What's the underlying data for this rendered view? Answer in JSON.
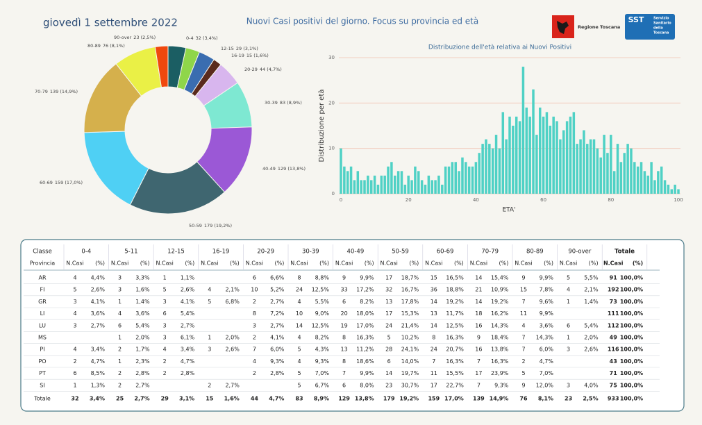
{
  "header": {
    "date": "giovedì 1 settembre 2022",
    "title": "Nuovi Casi positivi del giorno. Focus su provincia ed età",
    "logo_regione": "Regione Toscana",
    "logo_sst": {
      "mark": "SST",
      "lines": [
        "Servizio",
        "Sanitario",
        "della",
        "Toscana"
      ]
    }
  },
  "chart_data": [
    {
      "type": "donut",
      "categories": [
        "0-4",
        null,
        "12-15",
        "16-19",
        "20-29",
        "30-39",
        "40-49",
        "50-59",
        "60-69",
        "70-79",
        "80-89",
        "90-over"
      ],
      "values": [
        32,
        25,
        29,
        15,
        44,
        83,
        129,
        179,
        159,
        139,
        76,
        23
      ],
      "value_labels": [
        "32 (3,4%)",
        null,
        "29 (3,1%)",
        "15 (1,6%)",
        "44 (4,7%)",
        "83 (8,9%)",
        "129 (13,8%)",
        "179 (19,2%)",
        "159 (17,0%)",
        "139 (14,9%)",
        "76 (8,1%)",
        "23 (2,5%)"
      ],
      "colors": [
        "#1b5e63",
        "#8fd64a",
        "#3a6db0",
        "#5a2a1c",
        "#d8b6ee",
        "#7ee8d2",
        "#9b58d6",
        "#3f6670",
        "#4fd0f4",
        "#d5b04c",
        "#eaf046",
        "#f0480e"
      ]
    },
    {
      "type": "bar",
      "title": "Distribuzione dell'età relativa ai Nuovi Positivi",
      "x_label": "ETA'",
      "y_label": "Distribuzione per età",
      "x": [
        0,
        1,
        2,
        3,
        4,
        5,
        6,
        7,
        8,
        9,
        10,
        11,
        12,
        13,
        14,
        15,
        16,
        17,
        18,
        19,
        20,
        21,
        22,
        23,
        24,
        25,
        26,
        27,
        28,
        29,
        30,
        31,
        32,
        33,
        34,
        35,
        36,
        37,
        38,
        39,
        40,
        41,
        42,
        43,
        44,
        45,
        46,
        47,
        48,
        49,
        50,
        51,
        52,
        53,
        54,
        55,
        56,
        57,
        58,
        59,
        60,
        61,
        62,
        63,
        64,
        65,
        66,
        67,
        68,
        69,
        70,
        71,
        72,
        73,
        74,
        75,
        76,
        77,
        78,
        79,
        80,
        81,
        82,
        83,
        84,
        85,
        86,
        87,
        88,
        89,
        90,
        91,
        92,
        93,
        94,
        95,
        96,
        97,
        98,
        99,
        100
      ],
      "values": [
        10,
        6,
        5,
        6,
        3,
        5,
        3,
        3,
        4,
        3,
        4,
        2,
        4,
        4,
        6,
        7,
        4,
        5,
        5,
        2,
        4,
        3,
        6,
        5,
        3,
        2,
        4,
        3,
        3,
        4,
        2,
        6,
        6,
        7,
        7,
        5,
        8,
        7,
        6,
        6,
        7,
        9,
        11,
        12,
        11,
        10,
        13,
        10,
        18,
        12,
        17,
        15,
        17,
        16,
        28,
        19,
        17,
        23,
        13,
        19,
        17,
        18,
        15,
        17,
        16,
        12,
        14,
        16,
        17,
        18,
        11,
        12,
        14,
        11,
        12,
        12,
        10,
        8,
        13,
        9,
        13,
        5,
        11,
        7,
        9,
        11,
        10,
        7,
        6,
        7,
        5,
        4,
        7,
        3,
        5,
        6,
        3,
        2,
        1,
        2,
        1
      ],
      "color": "#4fd1c5",
      "xlim": [
        0,
        100
      ],
      "xticks": [
        0,
        20,
        40,
        60,
        80,
        100
      ],
      "ylim": [
        0,
        30
      ],
      "yticks": [
        0,
        10,
        20,
        30
      ],
      "grid": true
    }
  ],
  "table": {
    "header": [
      "Classe",
      "0-4",
      "5-11",
      "12-15",
      "16-19",
      "20-29",
      "30-39",
      "40-49",
      "50-59",
      "60-69",
      "70-79",
      "80-89",
      "90-over",
      "Totale"
    ],
    "subheader": [
      "Provincia",
      "N.Casi",
      "(%)",
      "N.Casi",
      "(%)",
      "N.Casi",
      "(%)",
      "N.Casi",
      "(%)",
      "N.Casi",
      "(%)",
      "N.Casi",
      "(%)",
      "N.Casi",
      "(%)",
      "N.Casi",
      "(%)",
      "N.Casi",
      "(%)",
      "N.Casi",
      "(%)",
      "N.Casi",
      "(%)",
      "N.Casi",
      "(%)",
      "N.Casi",
      "(%)"
    ],
    "rows": [
      [
        "AR",
        4,
        "4,4%",
        3,
        "3,3%",
        1,
        "1,1%",
        null,
        null,
        6,
        "6,6%",
        8,
        "8,8%",
        9,
        "9,9%",
        17,
        "18,7%",
        15,
        "16,5%",
        14,
        "15,4%",
        9,
        "9,9%",
        5,
        "5,5%",
        91,
        "100,0%"
      ],
      [
        "FI",
        5,
        "2,6%",
        3,
        "1,6%",
        5,
        "2,6%",
        4,
        "2,1%",
        10,
        "5,2%",
        24,
        "12,5%",
        33,
        "17,2%",
        32,
        "16,7%",
        36,
        "18,8%",
        21,
        "10,9%",
        15,
        "7,8%",
        4,
        "2,1%",
        192,
        "100,0%"
      ],
      [
        "GR",
        3,
        "4,1%",
        1,
        "1,4%",
        3,
        "4,1%",
        5,
        "6,8%",
        2,
        "2,7%",
        4,
        "5,5%",
        6,
        "8,2%",
        13,
        "17,8%",
        14,
        "19,2%",
        14,
        "19,2%",
        7,
        "9,6%",
        1,
        "1,4%",
        73,
        "100,0%"
      ],
      [
        "LI",
        4,
        "3,6%",
        4,
        "3,6%",
        6,
        "5,4%",
        null,
        null,
        8,
        "7,2%",
        10,
        "9,0%",
        20,
        "18,0%",
        17,
        "15,3%",
        13,
        "11,7%",
        18,
        "16,2%",
        11,
        "9,9%",
        null,
        null,
        111,
        "100,0%"
      ],
      [
        "LU",
        3,
        "2,7%",
        6,
        "5,4%",
        3,
        "2,7%",
        null,
        null,
        3,
        "2,7%",
        14,
        "12,5%",
        19,
        "17,0%",
        24,
        "21,4%",
        14,
        "12,5%",
        16,
        "14,3%",
        4,
        "3,6%",
        6,
        "5,4%",
        112,
        "100,0%"
      ],
      [
        "MS",
        null,
        null,
        1,
        "2,0%",
        3,
        "6,1%",
        1,
        "2,0%",
        2,
        "4,1%",
        4,
        "8,2%",
        8,
        "16,3%",
        5,
        "10,2%",
        8,
        "16,3%",
        9,
        "18,4%",
        7,
        "14,3%",
        1,
        "2,0%",
        49,
        "100,0%"
      ],
      [
        "PI",
        4,
        "3,4%",
        2,
        "1,7%",
        4,
        "3,4%",
        3,
        "2,6%",
        7,
        "6,0%",
        5,
        "4,3%",
        13,
        "11,2%",
        28,
        "24,1%",
        24,
        "20,7%",
        16,
        "13,8%",
        7,
        "6,0%",
        3,
        "2,6%",
        116,
        "100,0%"
      ],
      [
        "PO",
        2,
        "4,7%",
        1,
        "2,3%",
        2,
        "4,7%",
        null,
        null,
        4,
        "9,3%",
        4,
        "9,3%",
        8,
        "18,6%",
        6,
        "14,0%",
        7,
        "16,3%",
        7,
        "16,3%",
        2,
        "4,7%",
        null,
        null,
        43,
        "100,0%"
      ],
      [
        "PT",
        6,
        "8,5%",
        2,
        "2,8%",
        2,
        "2,8%",
        null,
        null,
        2,
        "2,8%",
        5,
        "7,0%",
        7,
        "9,9%",
        14,
        "19,7%",
        11,
        "15,5%",
        17,
        "23,9%",
        5,
        "7,0%",
        null,
        null,
        71,
        "100,0%"
      ],
      [
        "SI",
        1,
        "1,3%",
        2,
        "2,7%",
        null,
        null,
        2,
        "2,7%",
        null,
        null,
        5,
        "6,7%",
        6,
        "8,0%",
        23,
        "30,7%",
        17,
        "22,7%",
        7,
        "9,3%",
        9,
        "12,0%",
        3,
        "4,0%",
        75,
        "100,0%"
      ]
    ],
    "total": [
      "Totale",
      32,
      "3,4%",
      25,
      "2,7%",
      29,
      "3,1%",
      15,
      "1,6%",
      44,
      "4,7%",
      83,
      "8,9%",
      129,
      "13,8%",
      179,
      "19,2%",
      159,
      "17,0%",
      139,
      "14,9%",
      76,
      "8,1%",
      23,
      "2,5%",
      933,
      "100,0%"
    ]
  }
}
